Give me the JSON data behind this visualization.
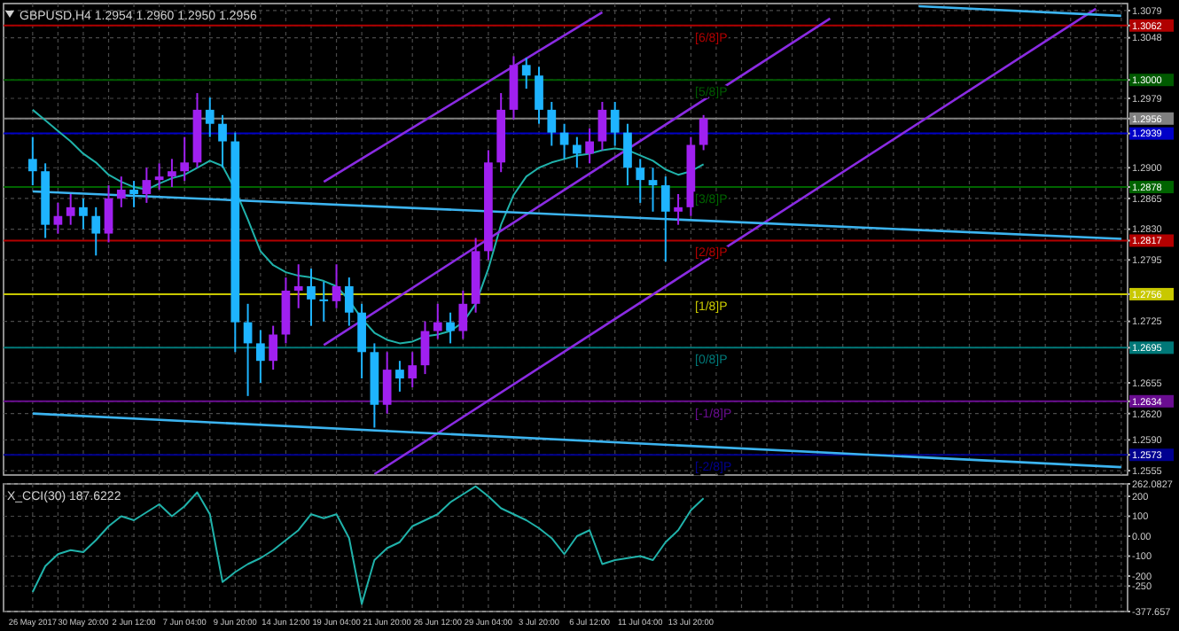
{
  "chart_data": [
    {
      "type": "candlestick",
      "title": "GBPUSD,H4  1.2954 1.2960 1.2950 1.2956",
      "categories": [
        null,
        null,
        null,
        null,
        null,
        null,
        null,
        null,
        null,
        null,
        null,
        null,
        null,
        null,
        null,
        null,
        null,
        null,
        null,
        null,
        null,
        null,
        null,
        null,
        null,
        null,
        null,
        null,
        null,
        null,
        null,
        null,
        null,
        null,
        null,
        null,
        null,
        null,
        null,
        null,
        null,
        null,
        null,
        null,
        null,
        null,
        null,
        null,
        null,
        null,
        null,
        null,
        null,
        null,
        null,
        null,
        null,
        null,
        null,
        null,
        null,
        null,
        null,
        null,
        null,
        null,
        null,
        null,
        null,
        null,
        null,
        null,
        null,
        null,
        null,
        null,
        null,
        null,
        null,
        null,
        null,
        null,
        null,
        null,
        null,
        null,
        null
      ],
      "ohlc": [
        [
          1.291,
          1.2935,
          1.288,
          1.2896
        ],
        [
          1.2896,
          1.2905,
          1.282,
          1.2835
        ],
        [
          1.2835,
          1.286,
          1.2825,
          1.2845
        ],
        [
          1.2845,
          1.287,
          1.2835,
          1.2855
        ],
        [
          1.2855,
          1.2865,
          1.283,
          1.2845
        ],
        [
          1.2845,
          1.2855,
          1.28,
          1.2825
        ],
        [
          1.2825,
          1.288,
          1.2815,
          1.2865
        ],
        [
          1.2865,
          1.289,
          1.2855,
          1.2875
        ],
        [
          1.2875,
          1.2885,
          1.2855,
          1.287
        ],
        [
          1.287,
          1.29,
          1.286,
          1.2886
        ],
        [
          1.2886,
          1.2905,
          1.2875,
          1.289
        ],
        [
          1.289,
          1.291,
          1.2878,
          1.2896
        ],
        [
          1.2896,
          1.2935,
          1.2885,
          1.2906
        ],
        [
          1.2906,
          1.2985,
          1.29,
          1.2966
        ],
        [
          1.2966,
          1.298,
          1.2935,
          1.295
        ],
        [
          1.295,
          1.296,
          1.29,
          1.293
        ],
        [
          1.293,
          1.294,
          1.269,
          1.2724
        ],
        [
          1.2724,
          1.2745,
          1.264,
          1.27
        ],
        [
          1.27,
          1.2715,
          1.2655,
          1.268
        ],
        [
          1.268,
          1.272,
          1.267,
          1.271
        ],
        [
          1.271,
          1.2775,
          1.27,
          1.276
        ],
        [
          1.276,
          1.279,
          1.274,
          1.2765
        ],
        [
          1.2765,
          1.2785,
          1.272,
          1.275
        ],
        [
          1.275,
          1.277,
          1.2725,
          1.2748
        ],
        [
          1.2748,
          1.279,
          1.274,
          1.2765
        ],
        [
          1.2765,
          1.2775,
          1.272,
          1.2735
        ],
        [
          1.2735,
          1.2745,
          1.266,
          1.269
        ],
        [
          1.269,
          1.27,
          1.2604,
          1.263
        ],
        [
          1.263,
          1.269,
          1.262,
          1.267
        ],
        [
          1.267,
          1.268,
          1.2645,
          1.266
        ],
        [
          1.266,
          1.269,
          1.265,
          1.2675
        ],
        [
          1.2675,
          1.2725,
          1.2665,
          1.2714
        ],
        [
          1.2714,
          1.2745,
          1.2705,
          1.2724
        ],
        [
          1.2724,
          1.2735,
          1.27,
          1.2714
        ],
        [
          1.2714,
          1.276,
          1.2705,
          1.2745
        ],
        [
          1.2745,
          1.282,
          1.2735,
          1.2805
        ],
        [
          1.2805,
          1.292,
          1.2795,
          1.2906
        ],
        [
          1.2906,
          1.2985,
          1.2895,
          1.2966
        ],
        [
          1.2966,
          1.3027,
          1.2955,
          1.3017
        ],
        [
          1.3017,
          1.3025,
          1.299,
          1.3005
        ],
        [
          1.3005,
          1.3015,
          1.295,
          1.2966
        ],
        [
          1.2966,
          1.2975,
          1.2925,
          1.294
        ],
        [
          1.294,
          1.295,
          1.291,
          1.2926
        ],
        [
          1.2926,
          1.2935,
          1.29,
          1.2916
        ],
        [
          1.2916,
          1.2945,
          1.2905,
          1.293
        ],
        [
          1.293,
          1.2975,
          1.292,
          1.2966
        ],
        [
          1.2966,
          1.2975,
          1.2925,
          1.294
        ],
        [
          1.294,
          1.295,
          1.288,
          1.29
        ],
        [
          1.29,
          1.291,
          1.286,
          1.2886
        ],
        [
          1.2886,
          1.29,
          1.285,
          1.288
        ],
        [
          1.288,
          1.289,
          1.2793,
          1.285
        ],
        [
          1.285,
          1.287,
          1.2835,
          1.2855
        ],
        [
          1.2855,
          1.2935,
          1.2845,
          1.2926
        ],
        [
          1.2926,
          1.296,
          1.292,
          1.2956
        ],
        null,
        null,
        null,
        null,
        null,
        null,
        null,
        null,
        null,
        null,
        null,
        null,
        null,
        null,
        null,
        null,
        null,
        null,
        null,
        null,
        null,
        null,
        null,
        null,
        null,
        null,
        null,
        null,
        null,
        null,
        null,
        null,
        null
      ],
      "colors": [
        "#1eb4ff",
        "#1eb4ff",
        "#a020f0",
        "#a020f0",
        "#1eb4ff",
        "#1eb4ff",
        "#a020f0",
        "#a020f0",
        "#1eb4ff",
        "#a020f0",
        "#a020f0",
        "#a020f0",
        "#a020f0",
        "#a020f0",
        "#1eb4ff",
        "#1eb4ff",
        "#1eb4ff",
        "#1eb4ff",
        "#1eb4ff",
        "#a020f0",
        "#a020f0",
        "#a020f0",
        "#1eb4ff",
        "#1eb4ff",
        "#a020f0",
        "#1eb4ff",
        "#1eb4ff",
        "#1eb4ff",
        "#a020f0",
        "#1eb4ff",
        "#a020f0",
        "#a020f0",
        "#a020f0",
        "#1eb4ff",
        "#a020f0",
        "#a020f0",
        "#a020f0",
        "#a020f0",
        "#a020f0",
        "#1eb4ff",
        "#1eb4ff",
        "#1eb4ff",
        "#1eb4ff",
        "#1eb4ff",
        "#a020f0",
        "#a020f0",
        "#1eb4ff",
        "#1eb4ff",
        "#1eb4ff",
        "#1eb4ff",
        "#1eb4ff",
        "#a020f0",
        "#a020f0",
        "#a020f0",
        null,
        null,
        null,
        null,
        null,
        null,
        null,
        null,
        null,
        null,
        null,
        null,
        null,
        null,
        null,
        null,
        null,
        null,
        null,
        null,
        null,
        null,
        null,
        null,
        null,
        null,
        null,
        null,
        null,
        null,
        null,
        null,
        null
      ],
      "series": [
        {
          "type": "line",
          "color": "#20b2aa",
          "values": [
            1.2966,
            1.2954,
            1.2942,
            1.293,
            1.2916,
            1.2906,
            1.2892,
            1.2884,
            1.2878,
            1.2875,
            1.2882,
            1.2888,
            1.2892,
            1.29,
            1.2908,
            1.2902,
            1.2875,
            1.2841,
            1.2805,
            1.2789,
            1.2781,
            1.2777,
            1.2775,
            1.2771,
            1.2765,
            1.2749,
            1.2728,
            1.2712,
            1.2704,
            1.27,
            1.2702,
            1.2708,
            1.271,
            1.2714,
            1.2724,
            1.2745,
            1.2785,
            1.2835,
            1.2869,
            1.289,
            1.29,
            1.2906,
            1.291,
            1.2914,
            1.2916,
            1.292,
            1.2922,
            1.292,
            1.2914,
            1.2908,
            1.2898,
            1.2892,
            1.2896,
            1.2904,
            null,
            null,
            null,
            null,
            null,
            null,
            null,
            null,
            null,
            null,
            null,
            null,
            null,
            null,
            null,
            null,
            null,
            null,
            null,
            null,
            null,
            null,
            null,
            null,
            null,
            null,
            null,
            null,
            null,
            null,
            null,
            null,
            null
          ]
        },
        {
          "type": "line",
          "color": "#8a2be2",
          "values": [
            null,
            null,
            null,
            null,
            null,
            null,
            null,
            null,
            null,
            null,
            null,
            null,
            null,
            null,
            null,
            null,
            null,
            null,
            null,
            null,
            null,
            null,
            null,
            1.2884,
            null,
            null,
            null,
            null,
            null,
            null,
            null,
            null,
            null,
            null,
            null,
            null,
            null,
            null,
            null,
            null,
            null,
            null,
            null,
            null,
            null,
            1.3077,
            null,
            null,
            null,
            null,
            null,
            null,
            null,
            null,
            null,
            null,
            null,
            null,
            null,
            null,
            null,
            null,
            null,
            null,
            null,
            null,
            null,
            null,
            null,
            null,
            null,
            null,
            null,
            null,
            null,
            null,
            null,
            null,
            null,
            null,
            null,
            null,
            null,
            null,
            null,
            null,
            null
          ]
        },
        {
          "type": "line",
          "color": "#8a2be2",
          "values": [
            null,
            null,
            null,
            null,
            null,
            null,
            null,
            null,
            null,
            null,
            null,
            null,
            null,
            null,
            null,
            null,
            null,
            null,
            null,
            null,
            null,
            null,
            null,
            1.2698,
            null,
            null,
            null,
            null,
            null,
            null,
            null,
            null,
            null,
            null,
            null,
            null,
            null,
            null,
            null,
            null,
            null,
            null,
            null,
            null,
            null,
            null,
            null,
            null,
            null,
            null,
            null,
            null,
            null,
            null,
            null,
            null,
            null,
            null,
            null,
            null,
            null,
            null,
            null,
            1.307,
            null,
            null,
            null,
            null,
            null,
            null,
            null,
            null,
            null,
            null,
            null,
            null,
            null,
            null,
            null,
            null,
            null,
            null,
            null,
            null,
            null,
            null,
            null
          ]
        },
        {
          "type": "line",
          "color": "#8a2be2",
          "values": [
            null,
            null,
            null,
            null,
            null,
            null,
            null,
            null,
            null,
            null,
            null,
            null,
            null,
            null,
            null,
            null,
            null,
            null,
            null,
            null,
            null,
            null,
            null,
            null,
            null,
            null,
            null,
            1.2551,
            null,
            null,
            null,
            null,
            null,
            null,
            null,
            null,
            null,
            null,
            null,
            null,
            null,
            null,
            null,
            null,
            null,
            null,
            null,
            null,
            null,
            null,
            null,
            null,
            null,
            null,
            null,
            null,
            null,
            null,
            null,
            null,
            null,
            null,
            null,
            null,
            null,
            null,
            null,
            null,
            null,
            null,
            null,
            null,
            null,
            null,
            null,
            null,
            null,
            null,
            null,
            null,
            null,
            null,
            null,
            null,
            1.3081,
            null,
            null
          ]
        },
        {
          "type": "line",
          "color": "#3cb4f0",
          "values": [
            1.2873,
            null,
            null,
            null,
            null,
            null,
            null,
            null,
            null,
            null,
            null,
            null,
            null,
            null,
            null,
            null,
            null,
            null,
            null,
            null,
            null,
            null,
            null,
            null,
            null,
            null,
            null,
            null,
            null,
            null,
            null,
            null,
            null,
            null,
            null,
            null,
            null,
            null,
            null,
            null,
            null,
            null,
            null,
            null,
            null,
            null,
            null,
            null,
            null,
            null,
            null,
            null,
            null,
            null,
            null,
            null,
            null,
            null,
            null,
            null,
            null,
            null,
            null,
            null,
            null,
            null,
            null,
            null,
            null,
            null,
            null,
            null,
            null,
            null,
            null,
            null,
            null,
            null,
            null,
            null,
            null,
            null,
            null,
            null,
            null,
            null,
            1.2819
          ]
        },
        {
          "type": "line",
          "color": "#3cb4f0",
          "values": [
            1.262,
            null,
            null,
            null,
            null,
            null,
            null,
            null,
            null,
            null,
            null,
            null,
            null,
            null,
            null,
            null,
            null,
            null,
            null,
            null,
            null,
            null,
            null,
            null,
            null,
            null,
            null,
            null,
            null,
            null,
            null,
            null,
            null,
            null,
            null,
            null,
            null,
            null,
            null,
            null,
            null,
            null,
            null,
            null,
            null,
            null,
            null,
            null,
            null,
            null,
            null,
            null,
            null,
            null,
            null,
            null,
            null,
            null,
            null,
            null,
            null,
            null,
            null,
            null,
            null,
            null,
            null,
            null,
            null,
            null,
            null,
            null,
            null,
            null,
            null,
            null,
            null,
            null,
            null,
            null,
            null,
            null,
            null,
            null,
            null,
            null,
            1.2559
          ]
        },
        {
          "type": "line",
          "color": "#3cb4f0",
          "values": [
            null,
            null,
            null,
            null,
            null,
            null,
            null,
            null,
            null,
            null,
            null,
            null,
            null,
            null,
            null,
            null,
            null,
            null,
            null,
            null,
            null,
            null,
            null,
            null,
            null,
            null,
            null,
            null,
            null,
            null,
            null,
            null,
            null,
            null,
            null,
            null,
            null,
            null,
            null,
            null,
            null,
            null,
            null,
            null,
            null,
            null,
            null,
            null,
            null,
            null,
            null,
            null,
            null,
            null,
            null,
            null,
            null,
            null,
            null,
            null,
            null,
            null,
            null,
            null,
            null,
            null,
            null,
            null,
            null,
            null,
            1.3084,
            null,
            null,
            null,
            null,
            null,
            null,
            null,
            null,
            null,
            null,
            null,
            null,
            null,
            null,
            null,
            1.3073
          ]
        }
      ],
      "ylim": [
        1.255,
        1.3087
      ],
      "yticks": [
        1.3079,
        1.3062,
        1.3048,
        {
          "value": 1.3,
          "label": "1.3000"
        },
        1.2979,
        1.2956,
        1.2939,
        {
          "value": 1.29,
          "label": "1.2900"
        },
        1.2878,
        1.2865,
        {
          "value": 1.283,
          "label": "1.2830"
        },
        1.2817,
        1.2795,
        1.2756,
        1.2725,
        1.2695,
        1.2655,
        1.2634,
        {
          "value": 1.262,
          "label": "1.2620"
        },
        {
          "value": 1.259,
          "label": "1.2590"
        },
        1.2573,
        1.2555
      ],
      "grid": true,
      "tick_labels": "y",
      "ref_lines": [
        {
          "axis": "y",
          "value": 1.3062,
          "label": "[6/8]P",
          "color": "#b00000"
        },
        {
          "axis": "y",
          "value": 1.3,
          "label": "[5/8]P",
          "color": "#005a00"
        },
        {
          "axis": "y",
          "value": 1.2956,
          "color": "#808080"
        },
        {
          "axis": "y",
          "value": 1.2939,
          "color": "#0000c8"
        },
        {
          "axis": "y",
          "value": 1.2878,
          "label": "[3/8]P",
          "color": "#006400"
        },
        {
          "axis": "y",
          "value": 1.2817,
          "label": "[2/8]P",
          "color": "#b40000"
        },
        {
          "axis": "y",
          "value": 1.2756,
          "label": "[1/8]P",
          "color": "#c8c800"
        },
        {
          "axis": "y",
          "value": 1.2695,
          "label": "[0/8]P",
          "color": "#007878"
        },
        {
          "axis": "y",
          "value": 1.2634,
          "label": "[-1/8]P",
          "color": "#6a0d91"
        },
        {
          "axis": "y",
          "value": 1.2573,
          "label": "[-2/8]P",
          "color": "#000090"
        }
      ]
    },
    {
      "type": "line",
      "title": "X_CCI(30) 187.6222",
      "categories": [
        "26 May 2017",
        null,
        null,
        null,
        "30 May 20:00",
        null,
        null,
        null,
        "2 Jun 12:00",
        null,
        null,
        null,
        "7 Jun 04:00",
        null,
        null,
        null,
        "9 Jun 20:00",
        null,
        null,
        null,
        "14 Jun 12:00",
        null,
        null,
        null,
        "19 Jun 04:00",
        null,
        null,
        null,
        "21 Jun 20:00",
        null,
        null,
        null,
        "26 Jun 12:00",
        null,
        null,
        null,
        "29 Jun 04:00",
        null,
        null,
        null,
        "3 Jul 20:00",
        null,
        null,
        null,
        "6 Jul 12:00",
        null,
        null,
        null,
        "11 Jul 04:00",
        null,
        null,
        null,
        "13 Jul 20:00",
        null,
        null,
        null,
        null,
        null,
        null,
        null,
        null,
        null,
        null,
        null,
        null,
        null,
        null,
        null,
        null,
        null,
        null,
        null,
        null,
        null,
        null,
        null,
        null,
        null,
        null,
        null,
        null,
        null,
        null,
        null,
        null,
        null,
        null
      ],
      "series": [
        {
          "color": "#20b2aa",
          "values": [
            -280,
            -150,
            -90,
            -70,
            -80,
            -20,
            50,
            100,
            80,
            120,
            160,
            100,
            150,
            220,
            110,
            -230,
            -180,
            -140,
            -110,
            -70,
            -20,
            30,
            110,
            90,
            110,
            -10,
            -340,
            -120,
            -60,
            -30,
            50,
            80,
            110,
            170,
            210,
            250,
            200,
            140,
            110,
            80,
            40,
            -10,
            -90,
            0,
            30,
            -140,
            -120,
            -110,
            -100,
            -120,
            -30,
            30,
            130,
            190,
            null,
            null,
            null,
            null,
            null,
            null,
            null,
            null,
            null,
            null,
            null,
            null,
            null,
            null,
            null,
            null,
            null,
            null,
            null,
            null,
            null,
            null,
            null,
            null,
            null,
            null,
            null,
            null,
            null,
            null,
            null,
            null,
            null
          ]
        }
      ],
      "ylim": [
        -377.657,
        262.0827
      ],
      "yticks": [
        262.0827,
        200,
        100,
        {
          "value": 0,
          "label": "0.00"
        },
        -100,
        -200,
        -250,
        -377.657
      ],
      "grid": true
    }
  ]
}
